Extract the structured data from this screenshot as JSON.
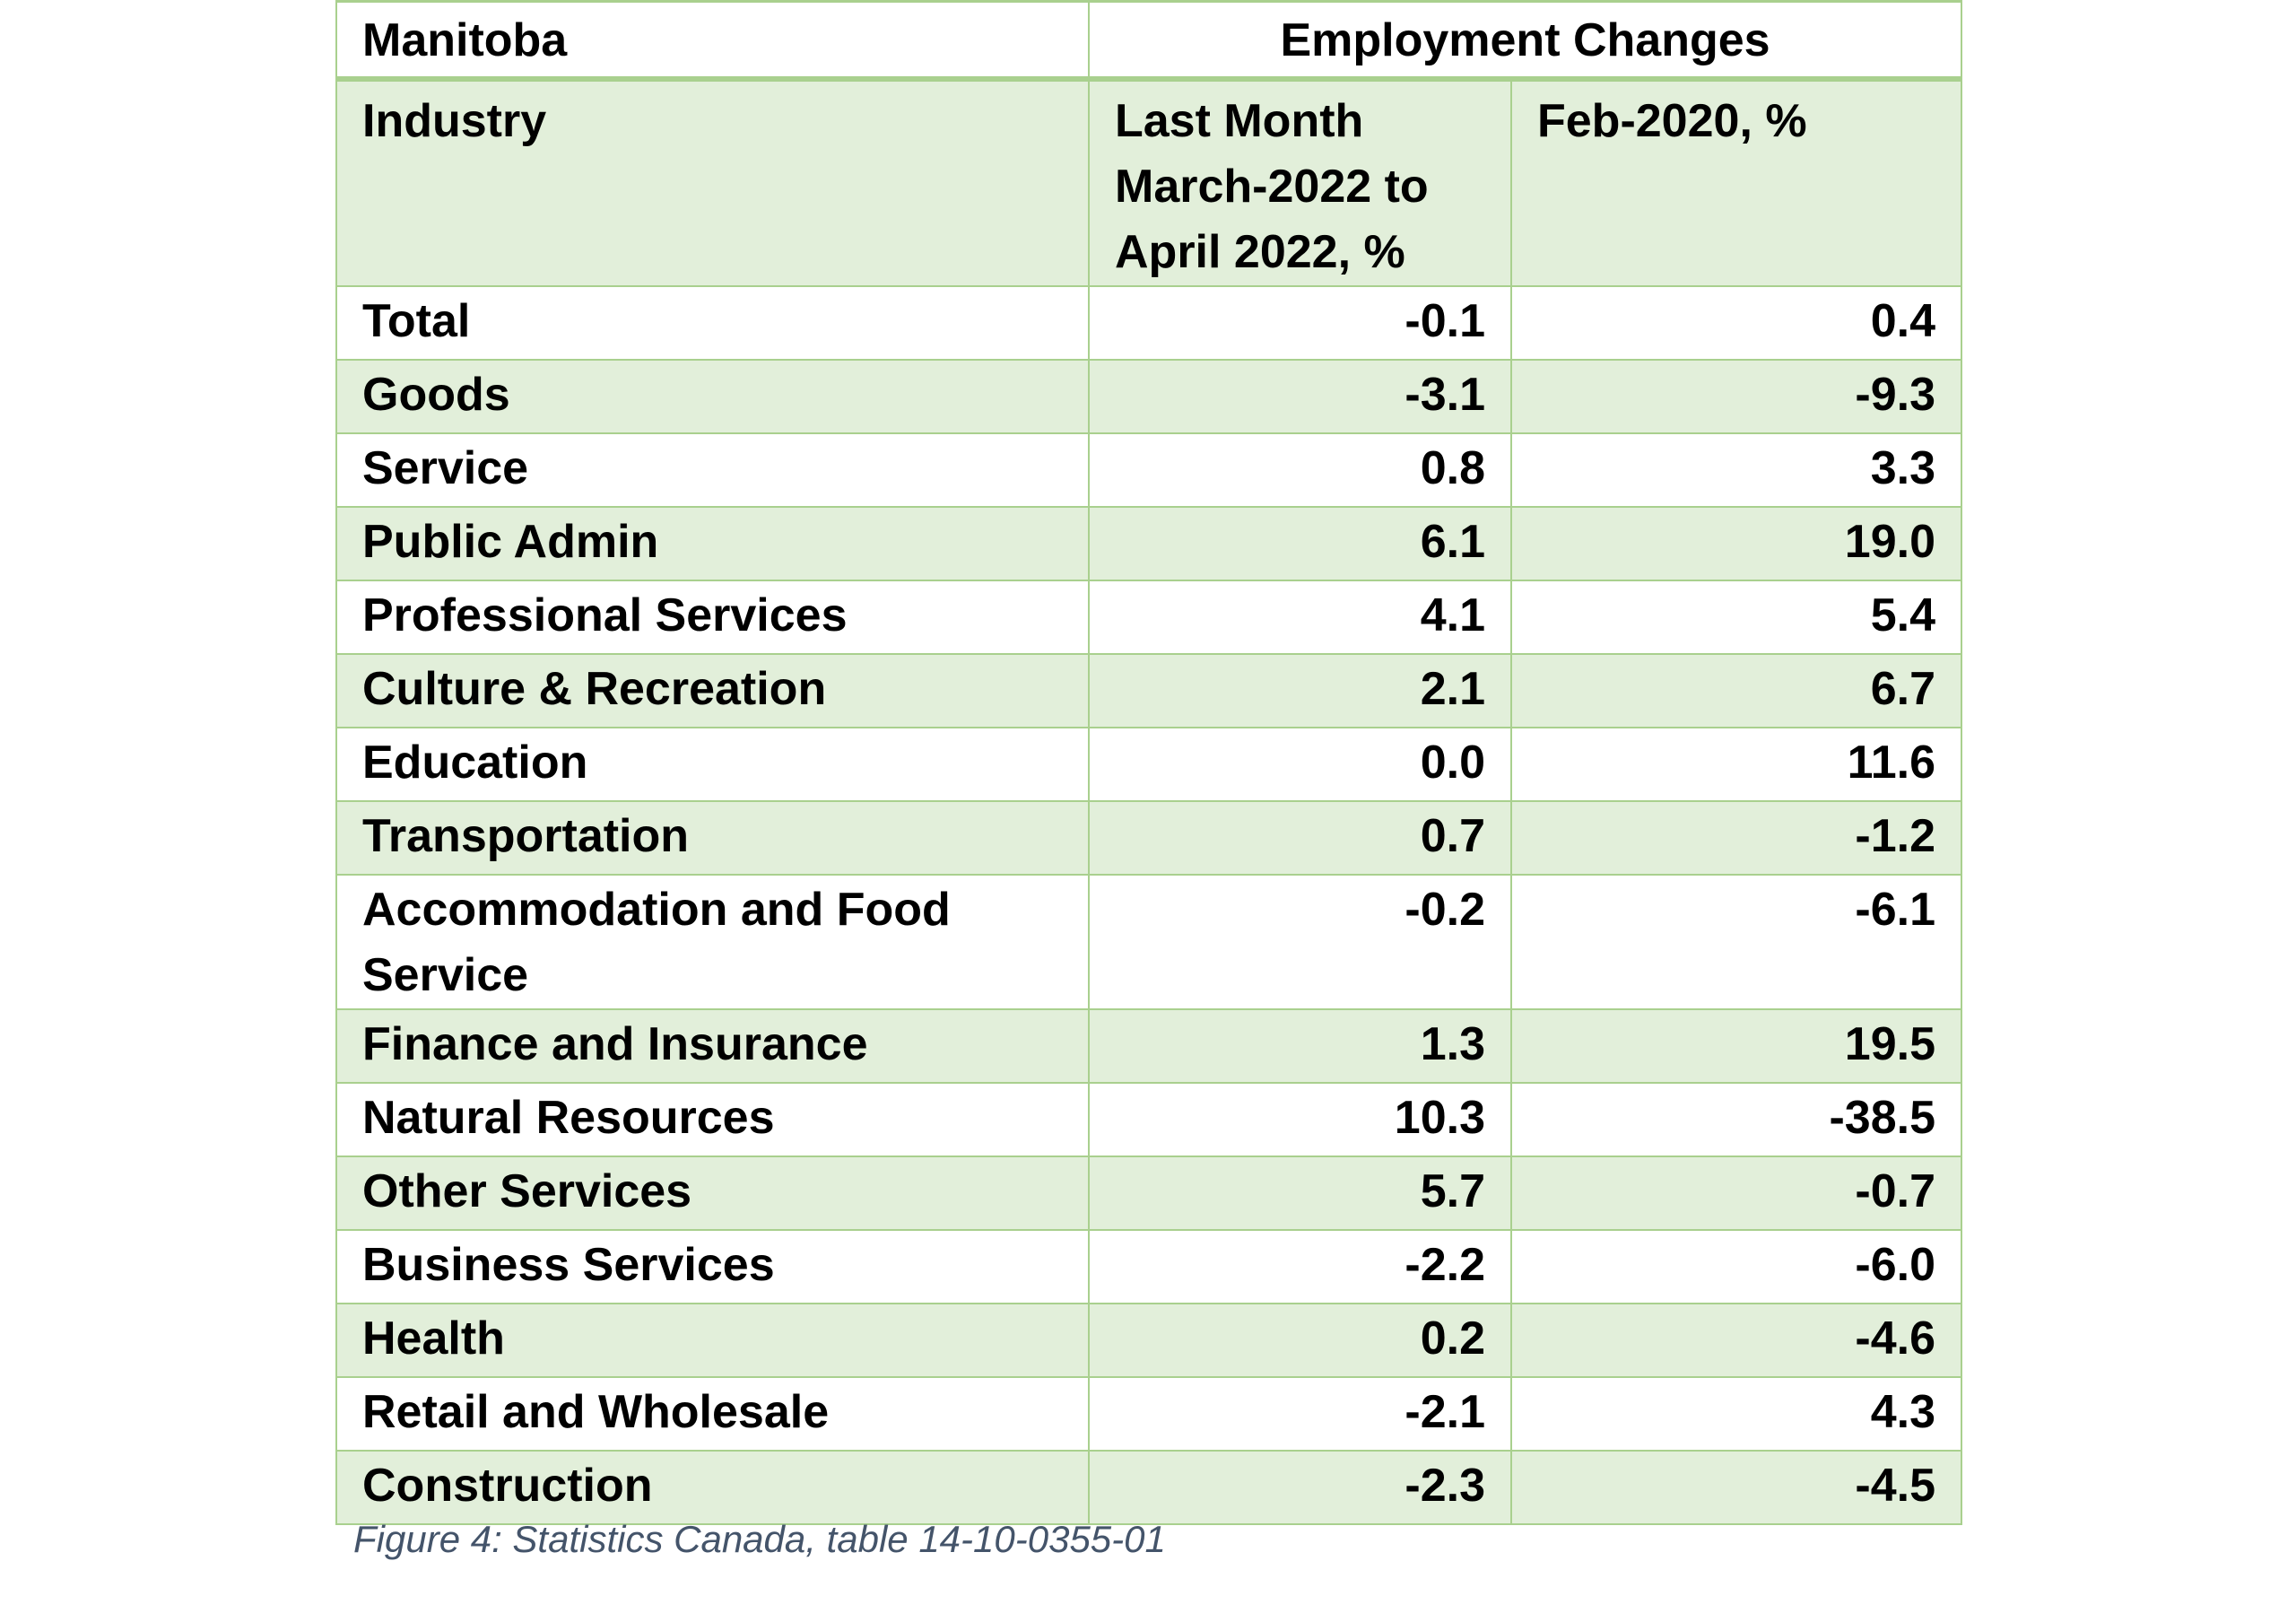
{
  "table": {
    "title_left": "Manitoba",
    "title_right": "Employment Changes",
    "col_industry": "Industry",
    "col_last_month": "Last Month March-2022 to April 2022, %",
    "col_feb2020": "Feb-2020, %",
    "rows": [
      {
        "industry": "Total",
        "last_month": "-0.1",
        "feb2020": "0.4"
      },
      {
        "industry": "Goods",
        "last_month": "-3.1",
        "feb2020": "-9.3"
      },
      {
        "industry": "Service",
        "last_month": "0.8",
        "feb2020": "3.3"
      },
      {
        "industry": "Public Admin",
        "last_month": "6.1",
        "feb2020": "19.0"
      },
      {
        "industry": "Professional Services",
        "last_month": "4.1",
        "feb2020": "5.4"
      },
      {
        "industry": "Culture & Recreation",
        "last_month": "2.1",
        "feb2020": "6.7"
      },
      {
        "industry": "Education",
        "last_month": "0.0",
        "feb2020": "11.6"
      },
      {
        "industry": "Transportation",
        "last_month": "0.7",
        "feb2020": "-1.2"
      },
      {
        "industry": "Accommodation and Food Service",
        "last_month": "-0.2",
        "feb2020": "-6.1"
      },
      {
        "industry": "Finance and Insurance",
        "last_month": "1.3",
        "feb2020": "19.5"
      },
      {
        "industry": "Natural Resources",
        "last_month": "10.3",
        "feb2020": "-38.5"
      },
      {
        "industry": "Other Services",
        "last_month": "5.7",
        "feb2020": "-0.7"
      },
      {
        "industry": "Business Services",
        "last_month": "-2.2",
        "feb2020": "-6.0"
      },
      {
        "industry": "Health",
        "last_month": "0.2",
        "feb2020": "-4.6"
      },
      {
        "industry": "Retail and Wholesale",
        "last_month": "-2.1",
        "feb2020": "4.3"
      },
      {
        "industry": "Construction",
        "last_month": "-2.3",
        "feb2020": "-4.5"
      }
    ]
  },
  "caption": "Figure 4: Statistics Canada, table 14-10-0355-01"
}
